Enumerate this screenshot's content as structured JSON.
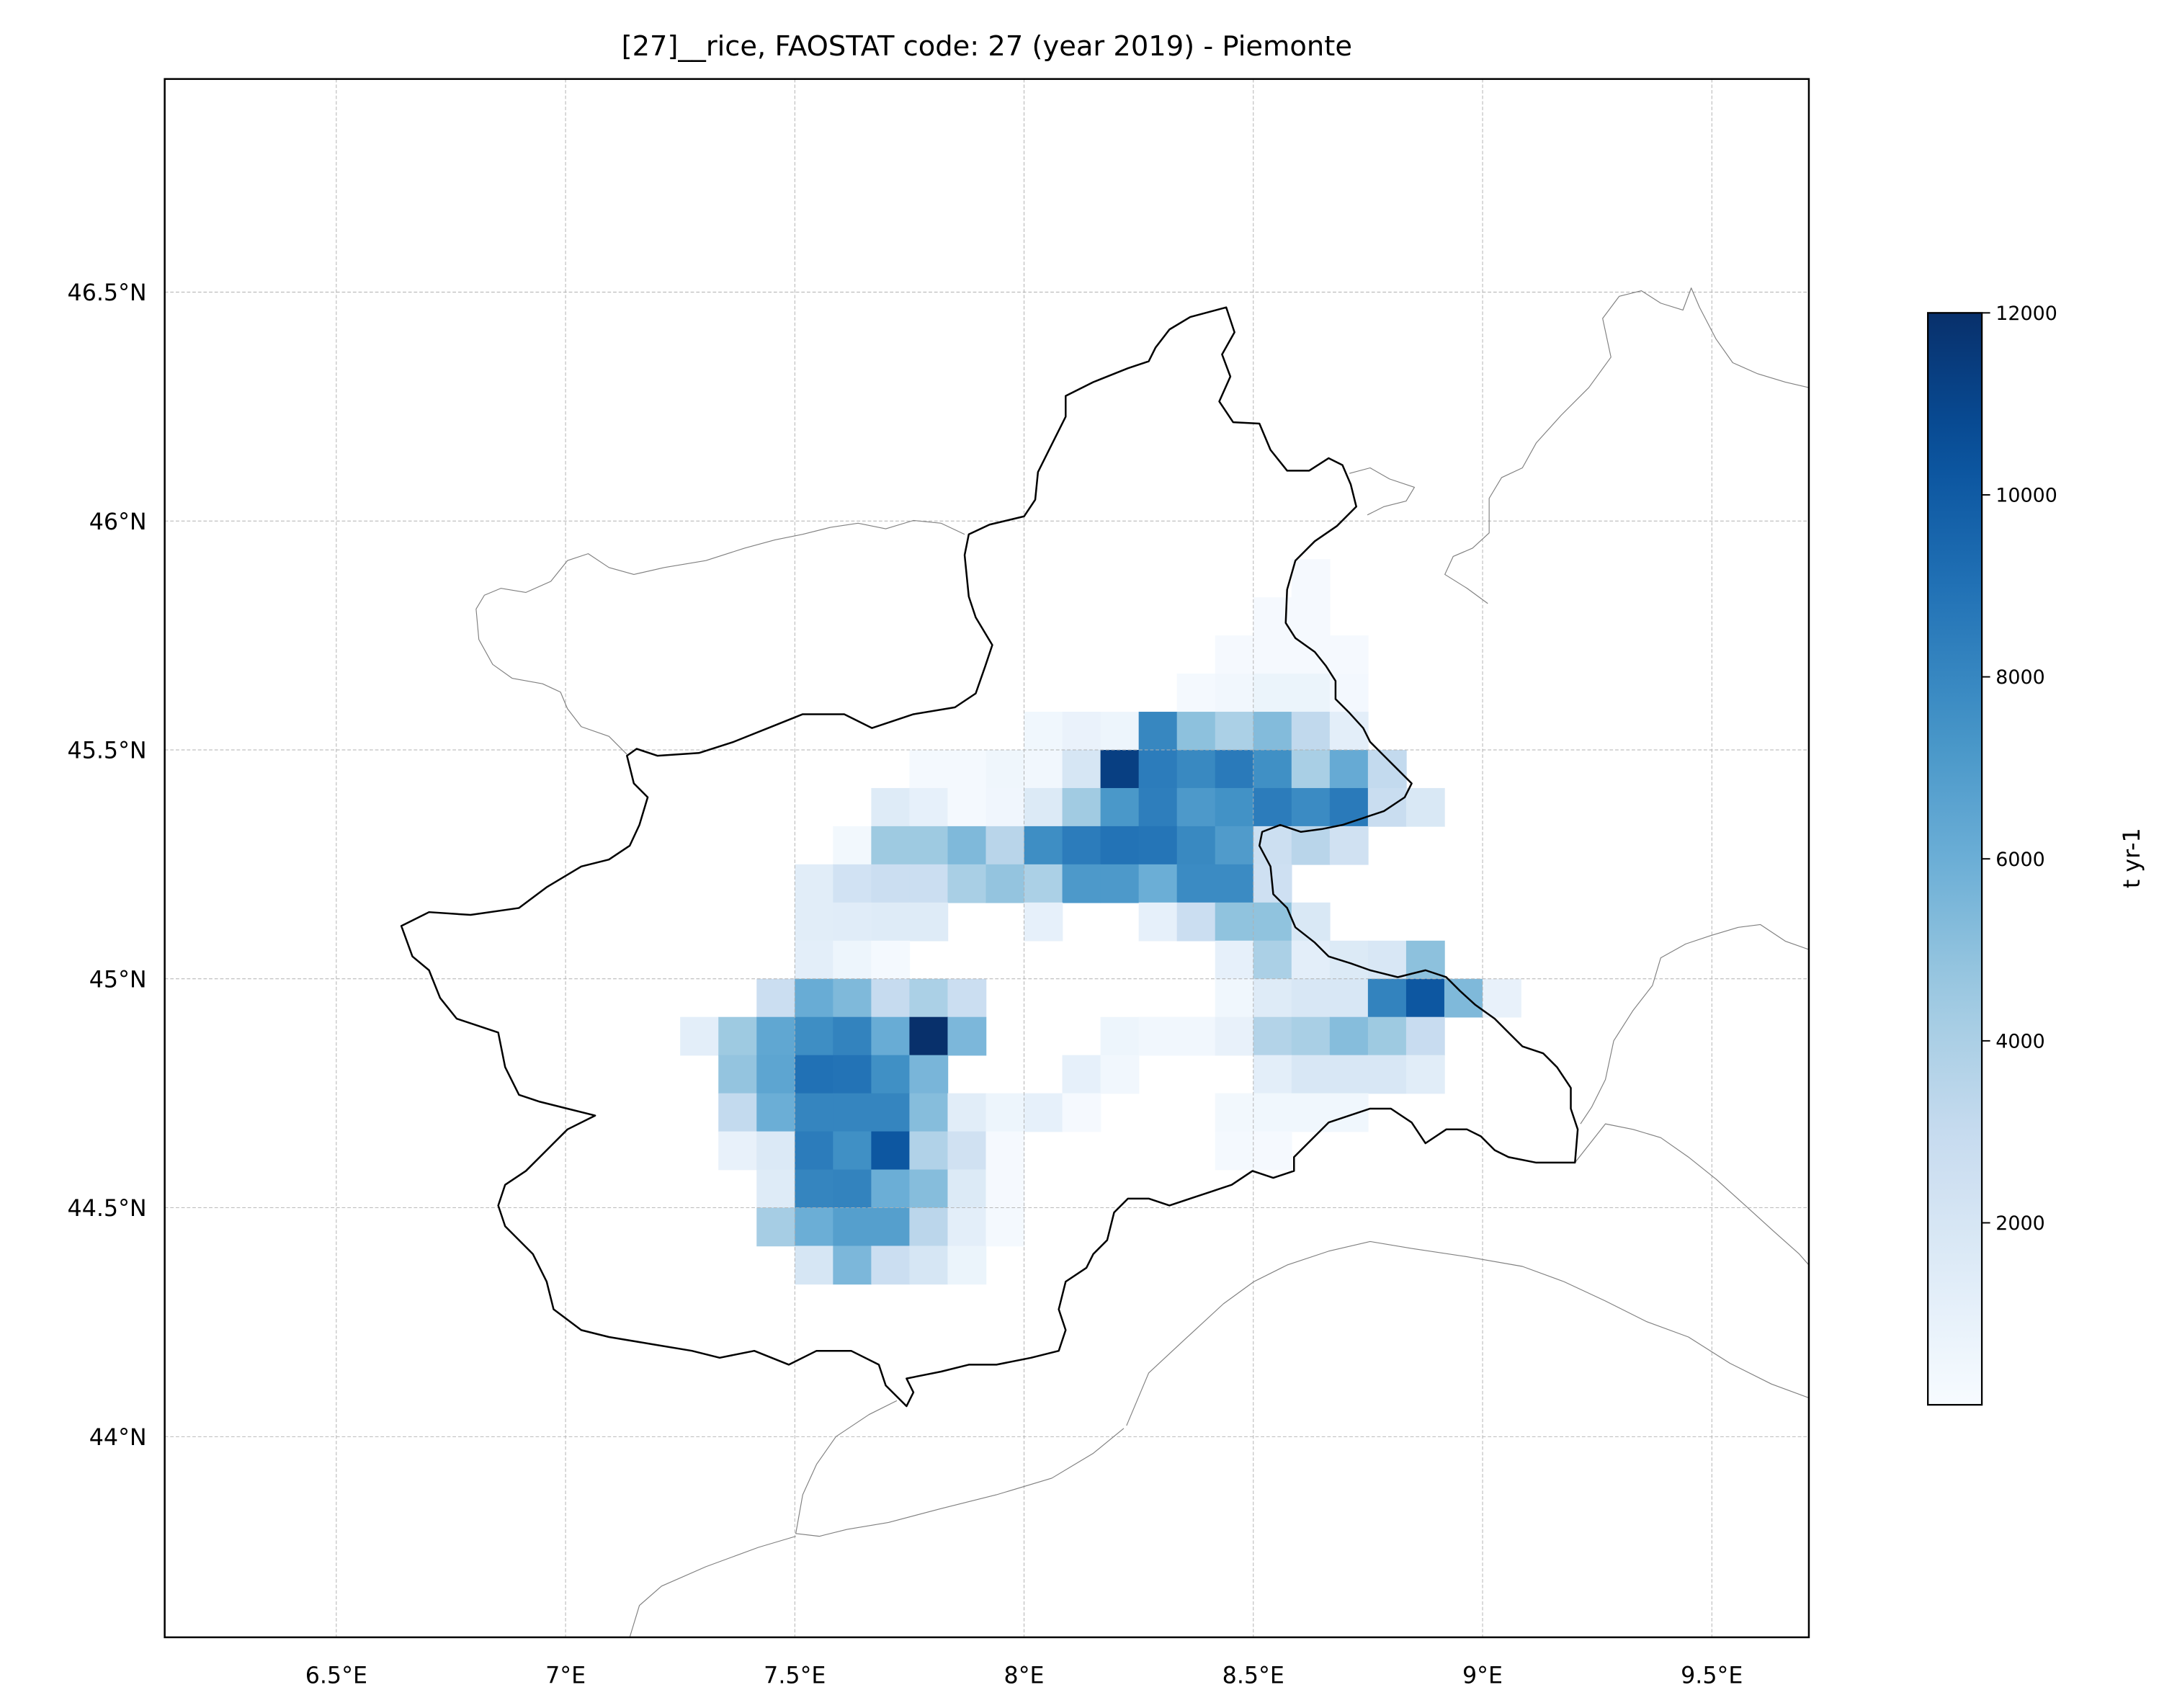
{
  "title": "[27]__rice, FAOSTAT code: 27 (year 2019) - Piemonte",
  "chart_data": {
    "type": "heatmap",
    "title": "[27]__rice, FAOSTAT code: 27 (year 2019) - Piemonte",
    "projection": "lon/lat (PlateCarree)",
    "xlim_deg_lon": [
      6.125,
      9.71
    ],
    "ylim_deg_lat": [
      43.567,
      46.967
    ],
    "x_ticks": [
      6.5,
      7.0,
      7.5,
      8.0,
      8.5,
      9.0,
      9.5
    ],
    "x_tick_labels": [
      "6.5°E",
      "7°E",
      "7.5°E",
      "8°E",
      "8.5°E",
      "9°E",
      "9.5°E"
    ],
    "y_ticks": [
      46.5,
      46.0,
      45.5,
      45.0,
      44.5,
      44.0
    ],
    "y_tick_labels": [
      "46.5°N",
      "46°N",
      "45.5°N",
      "45°N",
      "44.5°N",
      "44°N"
    ],
    "grid": true,
    "colormap": "Blues",
    "colormap_stops": [
      "#f7fbff",
      "#deebf7",
      "#c6dbef",
      "#9ecae1",
      "#6baed6",
      "#4292c6",
      "#2171b5",
      "#08519c",
      "#08306b"
    ],
    "vmin": 0,
    "vmax": 12000,
    "colorbar": {
      "label": "t yr-1",
      "ticks": [
        2000,
        4000,
        6000,
        8000,
        10000,
        12000
      ],
      "tick_labels": [
        "2000",
        "4000",
        "6000",
        "8000",
        "10000",
        "12000"
      ],
      "placement": "right"
    },
    "grid_origin_lon_west": 7.25,
    "grid_origin_lat_north": 45.9167,
    "cell_size_deg": 0.08333,
    "values_rows_north_to_south": [
      [
        null,
        null,
        null,
        null,
        null,
        null,
        null,
        null,
        null,
        null,
        null,
        null,
        null,
        null,
        null,
        null,
        150,
        null,
        null,
        null,
        null,
        null
      ],
      [
        null,
        null,
        null,
        null,
        null,
        null,
        null,
        null,
        null,
        null,
        null,
        null,
        null,
        null,
        null,
        150,
        150,
        null,
        null,
        null,
        null,
        null
      ],
      [
        null,
        null,
        null,
        null,
        null,
        null,
        null,
        null,
        null,
        null,
        null,
        null,
        null,
        null,
        150,
        150,
        150,
        150,
        null,
        null,
        null,
        null
      ],
      [
        null,
        null,
        null,
        null,
        null,
        null,
        null,
        null,
        null,
        null,
        null,
        null,
        null,
        200,
        350,
        700,
        700,
        250,
        null,
        null,
        null,
        null
      ],
      [
        null,
        null,
        null,
        null,
        null,
        null,
        null,
        null,
        null,
        400,
        800,
        600,
        8000,
        5000,
        4000,
        5300,
        3200,
        1200,
        null,
        null,
        null,
        null
      ],
      [
        null,
        null,
        null,
        null,
        null,
        null,
        200,
        200,
        500,
        350,
        2000,
        11300,
        8500,
        7900,
        8600,
        7600,
        4100,
        6200,
        3100,
        null,
        null,
        null
      ],
      [
        null,
        null,
        null,
        null,
        null,
        1500,
        1000,
        200,
        450,
        1600,
        4400,
        7200,
        8400,
        7100,
        7500,
        8500,
        7800,
        8600,
        2800,
        1800,
        null,
        null
      ],
      [
        null,
        null,
        null,
        null,
        300,
        4500,
        4500,
        5400,
        3500,
        7700,
        8500,
        8900,
        8800,
        7900,
        7000,
        2600,
        3500,
        2400,
        null,
        null,
        null,
        null
      ],
      [
        null,
        null,
        null,
        1300,
        2300,
        2700,
        2700,
        4100,
        4800,
        4000,
        7100,
        7100,
        6000,
        7800,
        7800,
        2500,
        null,
        null,
        null,
        null,
        null,
        null
      ],
      [
        null,
        null,
        null,
        1300,
        1400,
        1500,
        1500,
        null,
        null,
        1000,
        null,
        null,
        1000,
        2700,
        4900,
        4900,
        1800,
        null,
        null,
        null,
        null,
        null
      ],
      [
        null,
        null,
        null,
        1200,
        600,
        200,
        null,
        null,
        null,
        null,
        null,
        null,
        null,
        null,
        1000,
        4000,
        1200,
        1600,
        1900,
        5000,
        null,
        null
      ],
      [
        null,
        null,
        2700,
        6100,
        5400,
        3000,
        4000,
        2700,
        null,
        null,
        null,
        null,
        null,
        null,
        400,
        1500,
        1900,
        1900,
        8200,
        10200,
        5400,
        900
      ],
      [
        1200,
        4500,
        6400,
        7700,
        8200,
        6100,
        12000,
        5500,
        null,
        null,
        null,
        600,
        350,
        350,
        900,
        3700,
        4100,
        5200,
        4500,
        2900,
        null,
        null
      ],
      [
        null,
        4800,
        6500,
        9000,
        8900,
        7600,
        5600,
        null,
        null,
        null,
        1000,
        350,
        null,
        null,
        null,
        1200,
        1900,
        1900,
        1900,
        1300,
        null,
        null
      ],
      [
        null,
        3100,
        6000,
        8100,
        8100,
        8100,
        5200,
        1300,
        600,
        1000,
        150,
        null,
        null,
        null,
        300,
        400,
        400,
        400,
        null,
        null,
        null,
        null
      ],
      [
        null,
        900,
        1700,
        8500,
        7600,
        10200,
        3800,
        2400,
        150,
        null,
        null,
        null,
        null,
        null,
        200,
        150,
        null,
        null,
        null,
        null,
        null,
        null
      ],
      [
        null,
        null,
        1500,
        8100,
        8200,
        6000,
        5200,
        1600,
        150,
        null,
        null,
        null,
        null,
        null,
        null,
        null,
        null,
        null,
        null,
        null,
        null,
        null
      ],
      [
        null,
        null,
        4200,
        6000,
        6800,
        6800,
        3400,
        1200,
        200,
        null,
        null,
        null,
        null,
        null,
        null,
        null,
        null,
        null,
        null,
        null,
        null,
        null
      ],
      [
        null,
        null,
        null,
        2000,
        5500,
        2700,
        2000,
        700,
        null,
        null,
        null,
        null,
        null,
        null,
        null,
        null,
        null,
        null,
        null,
        null,
        null,
        null
      ]
    ]
  }
}
